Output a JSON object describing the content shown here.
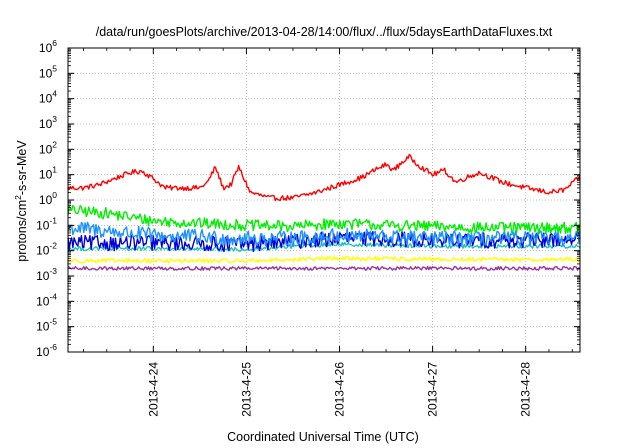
{
  "chart_data": {
    "type": "line",
    "title": "/data/run/goesPlots/archive/2013-04-28/14:00/flux/../flux/5daysEarthDataFluxes.txt",
    "xlabel": "Coordinated Universal Time (UTC)",
    "ylabel": "protons/cm2-s-sr-MeV",
    "ylabel_parts": {
      "base": "protons/cm",
      "sup": "2",
      "rest": "-s-sr-MeV"
    },
    "yscale": "log",
    "x_unit": "day",
    "xlim": [
      "2013-04-23T02:00",
      "2013-04-28T14:00"
    ],
    "ylim": [
      1e-06,
      1000000.0
    ],
    "x_ticks": [
      "2013-4-24",
      "2013-4-25",
      "2013-4-26",
      "2013-4-27",
      "2013-4-28"
    ],
    "y_ticks": [
      {
        "base": "10",
        "exp": "-6"
      },
      {
        "base": "10",
        "exp": "-5"
      },
      {
        "base": "10",
        "exp": "-4"
      },
      {
        "base": "10",
        "exp": "-3"
      },
      {
        "base": "10",
        "exp": "-2"
      },
      {
        "base": "10",
        "exp": "-1"
      },
      {
        "base": "10",
        "exp": "0"
      },
      {
        "base": "10",
        "exp": "1"
      },
      {
        "base": "10",
        "exp": "2"
      },
      {
        "base": "10",
        "exp": "3"
      },
      {
        "base": "10",
        "exp": "4"
      },
      {
        "base": "10",
        "exp": "5"
      },
      {
        "base": "10",
        "exp": "6"
      }
    ],
    "grid": true,
    "series": [
      {
        "color": "#ff0000",
        "noise": 0.1,
        "points": [
          [
            "2013-04-23T02:00",
            3
          ],
          [
            "2013-04-23T06:00",
            3
          ],
          [
            "2013-04-23T10:00",
            4
          ],
          [
            "2013-04-23T14:00",
            7
          ],
          [
            "2013-04-23T18:00",
            12
          ],
          [
            "2013-04-23T21:00",
            14
          ],
          [
            "2013-04-24T00:00",
            7
          ],
          [
            "2013-04-24T03:00",
            3
          ],
          [
            "2013-04-24T08:00",
            3
          ],
          [
            "2013-04-24T12:00",
            3
          ],
          [
            "2013-04-24T14:00",
            5
          ],
          [
            "2013-04-24T16:00",
            20
          ],
          [
            "2013-04-24T18:00",
            3
          ],
          [
            "2013-04-24T20:00",
            4
          ],
          [
            "2013-04-24T22:00",
            20
          ],
          [
            "2013-04-25T01:00",
            2
          ],
          [
            "2013-04-25T06:00",
            1.2
          ],
          [
            "2013-04-25T12:00",
            1.2
          ],
          [
            "2013-04-25T18:00",
            2
          ],
          [
            "2013-04-26T00:00",
            4
          ],
          [
            "2013-04-26T06:00",
            8
          ],
          [
            "2013-04-26T09:00",
            15
          ],
          [
            "2013-04-26T12:00",
            25
          ],
          [
            "2013-04-26T14:00",
            15
          ],
          [
            "2013-04-26T16:00",
            30
          ],
          [
            "2013-04-26T18:00",
            50
          ],
          [
            "2013-04-26T21:00",
            20
          ],
          [
            "2013-04-27T00:00",
            10
          ],
          [
            "2013-04-27T03:00",
            15
          ],
          [
            "2013-04-27T06:00",
            5
          ],
          [
            "2013-04-27T09:00",
            8
          ],
          [
            "2013-04-27T12:00",
            12
          ],
          [
            "2013-04-27T15:00",
            8
          ],
          [
            "2013-04-27T18:00",
            5
          ],
          [
            "2013-04-28T00:00",
            3
          ],
          [
            "2013-04-28T06:00",
            2
          ],
          [
            "2013-04-28T10:00",
            2.5
          ],
          [
            "2013-04-28T14:00",
            8
          ]
        ]
      },
      {
        "color": "#00ee00",
        "noise": 0.22,
        "points": [
          [
            "2013-04-23T02:00",
            0.4
          ],
          [
            "2013-04-23T12:00",
            0.3
          ],
          [
            "2013-04-24T00:00",
            0.15
          ],
          [
            "2013-04-24T12:00",
            0.12
          ],
          [
            "2013-04-25T00:00",
            0.1
          ],
          [
            "2013-04-25T12:00",
            0.09
          ],
          [
            "2013-04-26T00:00",
            0.12
          ],
          [
            "2013-04-26T12:00",
            0.1
          ],
          [
            "2013-04-27T00:00",
            0.09
          ],
          [
            "2013-04-27T12:00",
            0.08
          ],
          [
            "2013-04-28T00:00",
            0.08
          ],
          [
            "2013-04-28T14:00",
            0.08
          ]
        ]
      },
      {
        "color": "#1e90ff",
        "noise": 0.3,
        "points": [
          [
            "2013-04-23T02:00",
            0.08
          ],
          [
            "2013-04-23T12:00",
            0.06
          ],
          [
            "2013-04-24T00:00",
            0.04
          ],
          [
            "2013-04-24T12:00",
            0.035
          ],
          [
            "2013-04-25T00:00",
            0.03
          ],
          [
            "2013-04-25T12:00",
            0.03
          ],
          [
            "2013-04-26T00:00",
            0.04
          ],
          [
            "2013-04-26T12:00",
            0.035
          ],
          [
            "2013-04-27T00:00",
            0.03
          ],
          [
            "2013-04-28T00:00",
            0.03
          ],
          [
            "2013-04-28T14:00",
            0.03
          ]
        ]
      },
      {
        "color": "#0000dd",
        "noise": 0.3,
        "points": [
          [
            "2013-04-23T02:00",
            0.02
          ],
          [
            "2013-04-24T00:00",
            0.02
          ],
          [
            "2013-04-25T00:00",
            0.018
          ],
          [
            "2013-04-26T00:00",
            0.03
          ],
          [
            "2013-04-26T12:00",
            0.03
          ],
          [
            "2013-04-27T00:00",
            0.025
          ],
          [
            "2013-04-28T00:00",
            0.025
          ],
          [
            "2013-04-28T14:00",
            0.03
          ]
        ]
      },
      {
        "color": "#20c0c0",
        "noise": 0.08,
        "points": [
          [
            "2013-04-23T02:00",
            0.012
          ],
          [
            "2013-04-24T00:00",
            0.012
          ],
          [
            "2013-04-25T00:00",
            0.011
          ],
          [
            "2013-04-25T12:00",
            0.015
          ],
          [
            "2013-04-26T00:00",
            0.018
          ],
          [
            "2013-04-27T00:00",
            0.015
          ],
          [
            "2013-04-28T00:00",
            0.015
          ],
          [
            "2013-04-28T14:00",
            0.015
          ]
        ]
      },
      {
        "color": "#ffff00",
        "noise": 0.08,
        "points": [
          [
            "2013-04-23T02:00",
            0.004
          ],
          [
            "2013-04-25T00:00",
            0.004
          ],
          [
            "2013-04-26T00:00",
            0.005
          ],
          [
            "2013-04-27T00:00",
            0.0045
          ],
          [
            "2013-04-28T14:00",
            0.0045
          ]
        ]
      },
      {
        "color": "#993399",
        "noise": 0.07,
        "points": [
          [
            "2013-04-23T02:00",
            0.002
          ],
          [
            "2013-04-25T00:00",
            0.002
          ],
          [
            "2013-04-27T00:00",
            0.002
          ],
          [
            "2013-04-28T14:00",
            0.002
          ]
        ]
      }
    ]
  }
}
